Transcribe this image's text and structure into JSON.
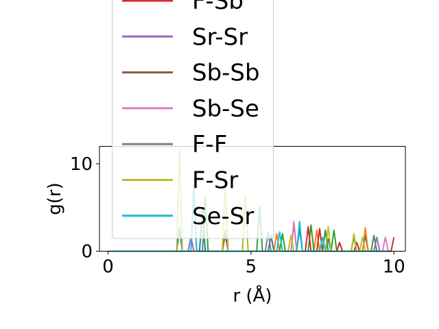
{
  "chart_data": {
    "type": "line",
    "title": "",
    "xlabel": "r (Å)",
    "ylabel": "g(r)",
    "xlim": [
      -0.3,
      10.4
    ],
    "ylim": [
      0,
      12
    ],
    "x_ticks": [
      0,
      5,
      10
    ],
    "x_tick_labels": [
      "0",
      "5",
      "10"
    ],
    "y_ticks": [
      0,
      10
    ],
    "y_tick_labels": [
      "0",
      "10"
    ],
    "grid": false,
    "legend_position": "upper-left (overflowing above the axes)",
    "legend": [
      {
        "name": "F-Sb",
        "color": "#d62728"
      },
      {
        "name": "Sr-Sr",
        "color": "#9467bd"
      },
      {
        "name": "Sb-Sb",
        "color": "#8c564b"
      },
      {
        "name": "Sb-Se",
        "color": "#e377c2"
      },
      {
        "name": "F-F",
        "color": "#7f7f7f"
      },
      {
        "name": "F-Sr",
        "color": "#bcbd22"
      },
      {
        "name": "Se-Sr",
        "color": "#17becf"
      }
    ],
    "series": [
      {
        "color": "#1f77b4",
        "points": [
          [
            0,
            0
          ],
          [
            2.4,
            0
          ],
          [
            2.5,
            2.6
          ],
          [
            2.6,
            0
          ],
          [
            3.2,
            0
          ],
          [
            3.3,
            4.8
          ],
          [
            3.4,
            0
          ],
          [
            4.0,
            0
          ],
          [
            4.1,
            2.2
          ],
          [
            4.2,
            0
          ],
          [
            5.6,
            0
          ],
          [
            5.7,
            1.8
          ],
          [
            5.8,
            0
          ],
          [
            6.6,
            0
          ],
          [
            6.7,
            2.6
          ],
          [
            6.8,
            0
          ],
          [
            7.6,
            0
          ],
          [
            7.7,
            1.4
          ],
          [
            7.8,
            0
          ],
          [
            8.9,
            0
          ],
          [
            9.0,
            1.8
          ],
          [
            9.1,
            0
          ],
          [
            9.8,
            0
          ]
        ]
      },
      {
        "color": "#ff7f0e",
        "points": [
          [
            0,
            0
          ],
          [
            5.8,
            0
          ],
          [
            5.9,
            2.0
          ],
          [
            6.0,
            0
          ],
          [
            7.2,
            0
          ],
          [
            7.3,
            2.4
          ],
          [
            7.4,
            0
          ],
          [
            8.9,
            0
          ],
          [
            9.0,
            2.7
          ],
          [
            9.1,
            0
          ],
          [
            9.8,
            0
          ]
        ]
      },
      {
        "color": "#2ca02c",
        "points": [
          [
            0,
            0
          ],
          [
            3.3,
            0
          ],
          [
            3.4,
            6.2
          ],
          [
            3.5,
            0
          ],
          [
            4.7,
            0
          ],
          [
            4.8,
            6.4
          ],
          [
            4.9,
            0
          ],
          [
            5.2,
            0
          ],
          [
            5.3,
            5.2
          ],
          [
            5.4,
            0
          ],
          [
            6.0,
            0
          ],
          [
            6.1,
            2.0
          ],
          [
            6.2,
            0
          ],
          [
            7.0,
            0
          ],
          [
            7.1,
            3.0
          ],
          [
            7.2,
            0
          ],
          [
            7.5,
            0
          ],
          [
            7.6,
            2.4
          ],
          [
            7.7,
            0
          ],
          [
            7.8,
            0
          ],
          [
            7.9,
            2.4
          ],
          [
            8.0,
            0
          ],
          [
            8.5,
            0
          ],
          [
            8.6,
            1.6
          ],
          [
            8.7,
            0
          ],
          [
            9.2,
            0
          ],
          [
            9.3,
            1.8
          ],
          [
            9.4,
            0
          ],
          [
            9.8,
            0
          ]
        ]
      },
      {
        "color": "#d62728",
        "points": [
          [
            0,
            0
          ],
          [
            6.9,
            0
          ],
          [
            7.0,
            2.8
          ],
          [
            7.1,
            0
          ],
          [
            7.3,
            0
          ],
          [
            7.4,
            2.6
          ],
          [
            7.5,
            0
          ],
          [
            8.0,
            0
          ],
          [
            8.1,
            1.0
          ],
          [
            8.2,
            0
          ],
          [
            8.6,
            0
          ],
          [
            8.7,
            1.0
          ],
          [
            8.8,
            0
          ],
          [
            9.9,
            0
          ],
          [
            10.0,
            1.6
          ]
        ]
      },
      {
        "color": "#9467bd",
        "points": [
          [
            0,
            0
          ],
          [
            2.8,
            0
          ],
          [
            2.9,
            1.6
          ],
          [
            3.0,
            0
          ],
          [
            4.0,
            0
          ],
          [
            4.1,
            2.4
          ],
          [
            4.2,
            0
          ],
          [
            9.3,
            0
          ],
          [
            9.4,
            1.6
          ],
          [
            9.5,
            0
          ],
          [
            9.8,
            0
          ]
        ]
      },
      {
        "color": "#8c564b",
        "points": [
          [
            0,
            0
          ],
          [
            4.0,
            0
          ],
          [
            4.1,
            2.0
          ],
          [
            4.2,
            0
          ],
          [
            6.4,
            0
          ],
          [
            6.5,
            3.2
          ],
          [
            6.6,
            0
          ],
          [
            9.8,
            0
          ]
        ]
      },
      {
        "color": "#e377c2",
        "points": [
          [
            0,
            0
          ],
          [
            2.9,
            0
          ],
          [
            3.0,
            7.6
          ],
          [
            3.1,
            0
          ],
          [
            6.4,
            0
          ],
          [
            6.5,
            3.4
          ],
          [
            6.6,
            0
          ],
          [
            9.6,
            0
          ],
          [
            9.7,
            1.6
          ],
          [
            9.8,
            0
          ]
        ]
      },
      {
        "color": "#7f7f7f",
        "points": [
          [
            0,
            0
          ],
          [
            5.5,
            0
          ],
          [
            5.6,
            2.2
          ],
          [
            5.7,
            0
          ],
          [
            9.8,
            0
          ]
        ]
      },
      {
        "color": "#bcbd22",
        "points": [
          [
            0,
            0
          ],
          [
            2.4,
            0
          ],
          [
            2.5,
            11.6
          ],
          [
            2.6,
            0
          ],
          [
            4.0,
            0
          ],
          [
            4.1,
            8.0
          ],
          [
            4.2,
            0
          ],
          [
            4.7,
            0
          ],
          [
            4.8,
            6.4
          ],
          [
            4.9,
            0
          ],
          [
            6.3,
            0
          ],
          [
            6.4,
            1.8
          ],
          [
            6.5,
            0
          ],
          [
            7.6,
            0
          ],
          [
            7.7,
            2.8
          ],
          [
            7.8,
            0
          ],
          [
            8.5,
            0
          ],
          [
            8.6,
            2.0
          ],
          [
            8.7,
            0
          ],
          [
            8.8,
            0
          ],
          [
            8.9,
            1.6
          ],
          [
            9.0,
            0
          ],
          [
            9.8,
            0
          ]
        ]
      },
      {
        "color": "#17becf",
        "points": [
          [
            0,
            0
          ],
          [
            2.9,
            0
          ],
          [
            3.0,
            7.4
          ],
          [
            3.1,
            0
          ],
          [
            5.9,
            0
          ],
          [
            6.0,
            2.2
          ],
          [
            6.1,
            0
          ],
          [
            6.6,
            0
          ],
          [
            6.7,
            3.4
          ],
          [
            6.8,
            0
          ],
          [
            7.4,
            0
          ],
          [
            7.5,
            1.6
          ],
          [
            7.6,
            0
          ],
          [
            9.8,
            0
          ]
        ]
      }
    ]
  }
}
